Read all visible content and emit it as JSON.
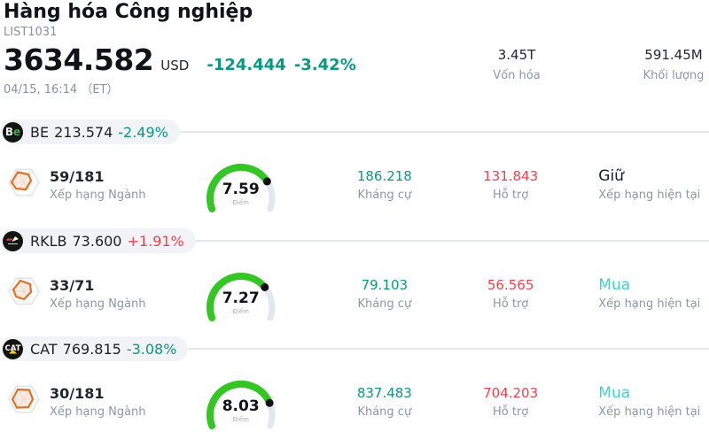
{
  "header": {
    "title": "Hàng hóa Công nghiệp",
    "list_id": "LIST1031",
    "price": "3634.582",
    "currency": "USD",
    "change_value": "-124.444",
    "change_pct": "-3.42%",
    "timestamp": "04/15, 16:14 （ET）",
    "market_cap": {
      "value": "3.45T",
      "label": "Vốn hóa"
    },
    "volume": {
      "value": "591.45M",
      "label": "Khối lượng"
    }
  },
  "labels": {
    "industry_rank": "Xếp hạng Ngành",
    "score": "Điểm",
    "resistance": "Kháng cự",
    "support": "Hỗ trợ",
    "current_rating": "Xếp hạng hiện tại"
  },
  "colors": {
    "down": "#089981",
    "up": "#f2414e",
    "buy": "#3fd4c9",
    "hold": "#1a1d21",
    "gauge_green": "#35c626",
    "gauge_track": "#e5e7ef",
    "gauge_dot": "#111111"
  },
  "rows": [
    {
      "ticker": "BE",
      "price": "213.574",
      "change": "-2.49%",
      "change_dir": "down",
      "logo_text_1": "B",
      "logo_text_2": "e",
      "rank": "59/181",
      "score": 7.59,
      "resistance": "186.218",
      "support": "131.843",
      "rating": "Giữ",
      "rating_type": "hold"
    },
    {
      "ticker": "RKLB",
      "price": "73.600",
      "change": "+1.91%",
      "change_dir": "up",
      "rank": "33/71",
      "score": 7.27,
      "resistance": "79.103",
      "support": "56.565",
      "rating": "Mua",
      "rating_type": "buy"
    },
    {
      "ticker": "CAT",
      "price": "769.815",
      "change": "-3.08%",
      "change_dir": "down",
      "logo_text_cat": "CAT",
      "rank": "30/181",
      "score": 8.03,
      "resistance": "837.483",
      "support": "704.203",
      "rating": "Mua",
      "rating_type": "buy"
    }
  ]
}
